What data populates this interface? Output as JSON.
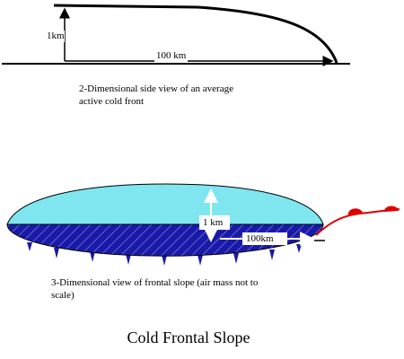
{
  "side_view": {
    "height_label": "1km",
    "width_label": "100 km",
    "caption": "2-Dimensional side view of an average active cold front"
  },
  "three_d_view": {
    "height_label": "1 km",
    "width_label": "100km",
    "caption": "3-Dimensional view of frontal slope (air mass not to scale)"
  },
  "title": "Cold Frontal Slope"
}
